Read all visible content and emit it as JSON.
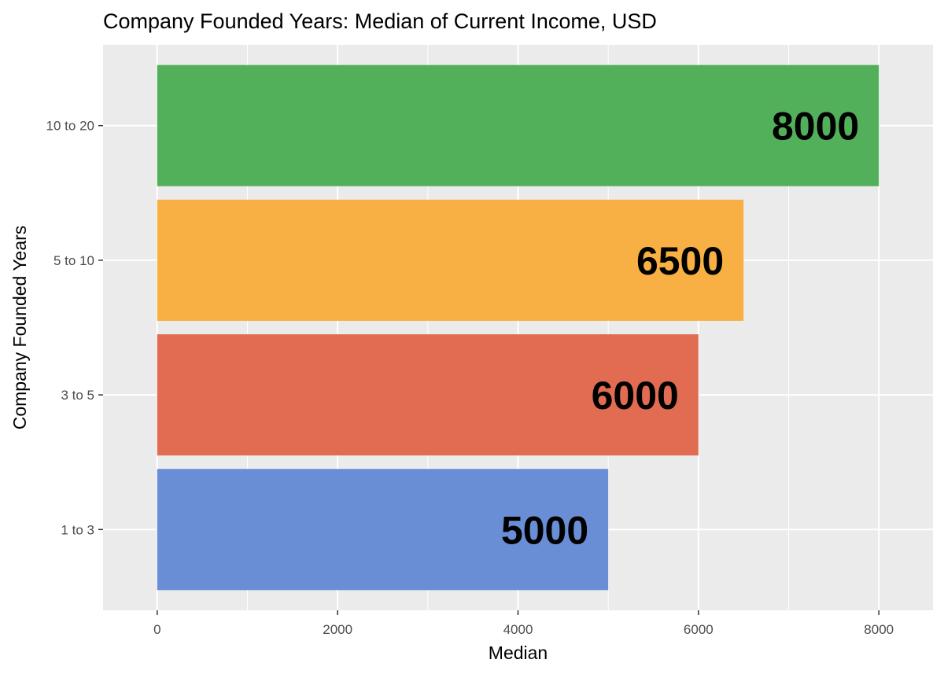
{
  "chart_data": {
    "type": "bar",
    "orientation": "horizontal",
    "title": "Company Founded Years: Median of Current Income, USD",
    "xlabel": "Median",
    "ylabel": "Company Founded Years",
    "categories": [
      "1 to 3",
      "3 to 5",
      "5 to 10",
      "10 to 20"
    ],
    "values": [
      5000,
      6000,
      6500,
      8000
    ],
    "data_labels": [
      "5000",
      "6000",
      "6500",
      "8000"
    ],
    "colors": [
      "#6a8ed6",
      "#e26c52",
      "#f8b044",
      "#52b05a"
    ],
    "xlim": [
      -600,
      8600
    ],
    "x_ticks": [
      0,
      2000,
      4000,
      6000,
      8000
    ],
    "x_tick_labels": [
      "0",
      "2000",
      "4000",
      "6000",
      "8000"
    ],
    "grid": true,
    "panel_background": "#ebebeb",
    "legend": "none"
  }
}
